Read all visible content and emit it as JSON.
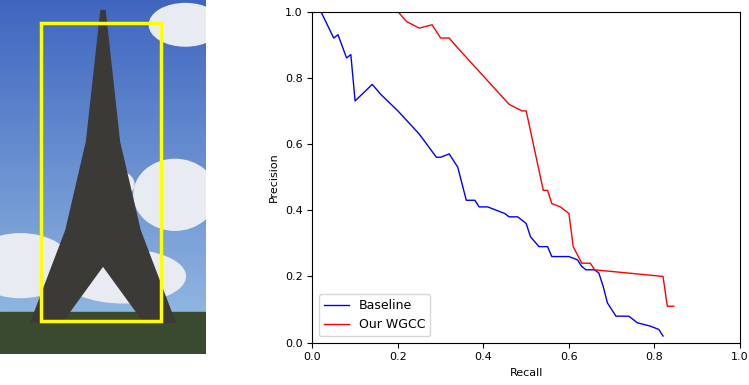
{
  "chart_data": {
    "type": "line",
    "x_label": "Recall",
    "y_label": "Precision",
    "xlim": [
      0,
      1
    ],
    "ylim": [
      0,
      1
    ],
    "xticks": [
      {
        "value": 0,
        "label": "0.0"
      },
      {
        "value": 0.2,
        "label": "0.2"
      },
      {
        "value": 0.4,
        "label": "0.4"
      },
      {
        "value": 0.6,
        "label": "0.6"
      },
      {
        "value": 0.8,
        "label": "0.8"
      },
      {
        "value": 1,
        "label": "1.0"
      }
    ],
    "yticks": [
      {
        "value": 0,
        "label": "0.0"
      },
      {
        "value": 0.2,
        "label": "0.2"
      },
      {
        "value": 0.4,
        "label": "0.4"
      },
      {
        "value": 0.6,
        "label": "0.6"
      },
      {
        "value": 0.8,
        "label": "0.8"
      },
      {
        "value": 1,
        "label": "1.0"
      }
    ],
    "grid": false,
    "legend": "lower left",
    "series": [
      {
        "name": "Baseline",
        "color": "#0000ff",
        "x": [
          0.02,
          0.05,
          0.06,
          0.08,
          0.09,
          0.1,
          0.14,
          0.16,
          0.2,
          0.25,
          0.29,
          0.3,
          0.32,
          0.34,
          0.36,
          0.38,
          0.39,
          0.41,
          0.43,
          0.45,
          0.46,
          0.48,
          0.5,
          0.51,
          0.53,
          0.55,
          0.56,
          0.58,
          0.6,
          0.62,
          0.63,
          0.64,
          0.66,
          0.67,
          0.68,
          0.69,
          0.7,
          0.71,
          0.74,
          0.76,
          0.79,
          0.81,
          0.82
        ],
        "values": [
          1.0,
          0.92,
          0.93,
          0.86,
          0.87,
          0.73,
          0.78,
          0.75,
          0.7,
          0.63,
          0.56,
          0.56,
          0.57,
          0.53,
          0.43,
          0.43,
          0.41,
          0.41,
          0.4,
          0.39,
          0.38,
          0.38,
          0.36,
          0.32,
          0.29,
          0.29,
          0.26,
          0.26,
          0.26,
          0.25,
          0.23,
          0.22,
          0.22,
          0.21,
          0.17,
          0.12,
          0.1,
          0.08,
          0.08,
          0.06,
          0.05,
          0.04,
          0.02
        ]
      },
      {
        "name": "Our WGCC",
        "color": "#ff0000",
        "x": [
          0.02,
          0.2,
          0.22,
          0.25,
          0.28,
          0.3,
          0.32,
          0.34,
          0.46,
          0.49,
          0.5,
          0.52,
          0.54,
          0.55,
          0.56,
          0.58,
          0.6,
          0.61,
          0.63,
          0.65,
          0.66,
          0.82,
          0.83,
          0.845
        ],
        "values": [
          1.0,
          1.0,
          0.97,
          0.95,
          0.96,
          0.92,
          0.92,
          0.89,
          0.72,
          0.7,
          0.7,
          0.58,
          0.46,
          0.46,
          0.42,
          0.41,
          0.39,
          0.29,
          0.24,
          0.24,
          0.22,
          0.2,
          0.11,
          0.11
        ]
      }
    ]
  }
}
